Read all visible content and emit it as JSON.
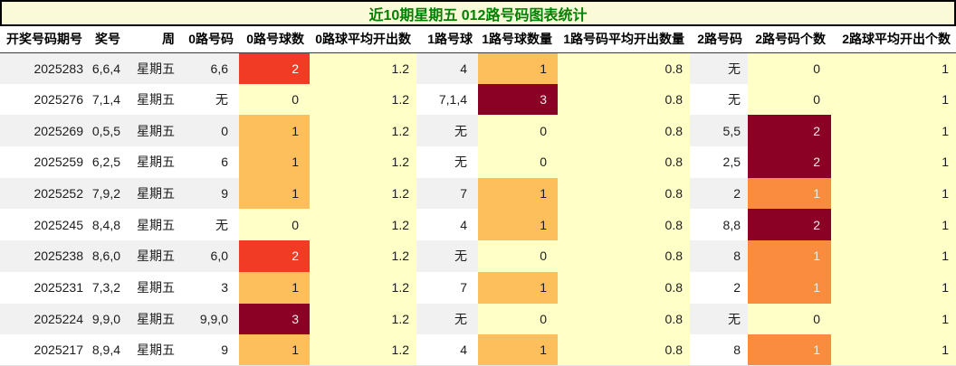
{
  "title_bar": {
    "title": "近10期星期五 012路号码图表统计"
  },
  "chart_data": {
    "type": "table",
    "title": "近10期星期五 012路号码图表统计",
    "headers": [
      "开奖号码期号",
      "奖号",
      "周",
      "0路号码",
      "0路号球数",
      "0路球平均开出数",
      "1路号球",
      "1路号球数量",
      "1路号码平均开出数量",
      "2路号码",
      "2路号码个数",
      "2路球平均开出个数"
    ],
    "rows": [
      {
        "period": "2025283",
        "prize": "6,6,4",
        "week": "星期五",
        "r0_nums": "6,6",
        "r0_count": "2",
        "r0_color": "red",
        "r0_avg": "1.2",
        "r1_nums": "4",
        "r1_count": "1",
        "r1_color": "light_orange",
        "r1_avg": "0.8",
        "r2_nums": "无",
        "r2_count": "0",
        "r2_color": "yellow",
        "r2_avg": "1"
      },
      {
        "period": "2025276",
        "prize": "7,1,4",
        "week": "星期五",
        "r0_nums": "无",
        "r0_count": "0",
        "r0_color": "yellow",
        "r0_avg": "1.2",
        "r1_nums": "7,1,4",
        "r1_count": "3",
        "r1_color": "maroon",
        "r1_avg": "0.8",
        "r2_nums": "无",
        "r2_count": "0",
        "r2_color": "yellow",
        "r2_avg": "1"
      },
      {
        "period": "2025269",
        "prize": "0,5,5",
        "week": "星期五",
        "r0_nums": "0",
        "r0_count": "1",
        "r0_color": "light_orange",
        "r0_avg": "1.2",
        "r1_nums": "无",
        "r1_count": "0",
        "r1_color": "yellow",
        "r1_avg": "0.8",
        "r2_nums": "5,5",
        "r2_count": "2",
        "r2_color": "maroon",
        "r2_avg": "1"
      },
      {
        "period": "2025259",
        "prize": "6,2,5",
        "week": "星期五",
        "r0_nums": "6",
        "r0_count": "1",
        "r0_color": "light_orange",
        "r0_avg": "1.2",
        "r1_nums": "无",
        "r1_count": "0",
        "r1_color": "yellow",
        "r1_avg": "0.8",
        "r2_nums": "2,5",
        "r2_count": "2",
        "r2_color": "maroon",
        "r2_avg": "1"
      },
      {
        "period": "2025252",
        "prize": "7,9,2",
        "week": "星期五",
        "r0_nums": "9",
        "r0_count": "1",
        "r0_color": "light_orange",
        "r0_avg": "1.2",
        "r1_nums": "7",
        "r1_count": "1",
        "r1_color": "light_orange",
        "r1_avg": "0.8",
        "r2_nums": "2",
        "r2_count": "1",
        "r2_color": "bright_orange",
        "r2_avg": "1"
      },
      {
        "period": "2025245",
        "prize": "8,4,8",
        "week": "星期五",
        "r0_nums": "无",
        "r0_count": "0",
        "r0_color": "yellow",
        "r0_avg": "1.2",
        "r1_nums": "4",
        "r1_count": "1",
        "r1_color": "light_orange",
        "r1_avg": "0.8",
        "r2_nums": "8,8",
        "r2_count": "2",
        "r2_color": "maroon",
        "r2_avg": "1"
      },
      {
        "period": "2025238",
        "prize": "8,6,0",
        "week": "星期五",
        "r0_nums": "6,0",
        "r0_count": "2",
        "r0_color": "red",
        "r0_avg": "1.2",
        "r1_nums": "无",
        "r1_count": "0",
        "r1_color": "yellow",
        "r1_avg": "0.8",
        "r2_nums": "8",
        "r2_count": "1",
        "r2_color": "bright_orange",
        "r2_avg": "1"
      },
      {
        "period": "2025231",
        "prize": "7,3,2",
        "week": "星期五",
        "r0_nums": "3",
        "r0_count": "1",
        "r0_color": "light_orange",
        "r0_avg": "1.2",
        "r1_nums": "7",
        "r1_count": "1",
        "r1_color": "light_orange",
        "r1_avg": "0.8",
        "r2_nums": "2",
        "r2_count": "1",
        "r2_color": "bright_orange",
        "r2_avg": "1"
      },
      {
        "period": "2025224",
        "prize": "9,9,0",
        "week": "星期五",
        "r0_nums": "9,9,0",
        "r0_count": "3",
        "r0_color": "maroon",
        "r0_avg": "1.2",
        "r1_nums": "无",
        "r1_count": "0",
        "r1_color": "yellow",
        "r1_avg": "0.8",
        "r2_nums": "无",
        "r2_count": "0",
        "r2_color": "yellow",
        "r2_avg": "1"
      },
      {
        "period": "2025217",
        "prize": "8,9,4",
        "week": "星期五",
        "r0_nums": "9",
        "r0_count": "1",
        "r0_color": "light_orange",
        "r0_avg": "1.2",
        "r1_nums": "4",
        "r1_count": "1",
        "r1_color": "light_orange",
        "r1_avg": "0.8",
        "r2_nums": "8",
        "r2_count": "1",
        "r2_color": "bright_orange",
        "r2_avg": "1"
      }
    ],
    "column_averages": {
      "road0_avg": "1.2",
      "road1_avg": "0.8",
      "road2_avg": "1"
    }
  },
  "colors": {
    "title_bar_bg": "#fafad8",
    "title_text": "#008000",
    "row_stripe": "#f1f1f1",
    "avg_bg": "#ffffc8",
    "heat": {
      "yellow": {
        "bg": "#ffffc8",
        "fg": "#1c1c1c"
      },
      "light_orange": {
        "bg": "#fdbe5c",
        "fg": "#1c1c1c"
      },
      "bright_orange": {
        "bg": "#fa8c40",
        "fg": "#ededed"
      },
      "red": {
        "bg": "#f23b24",
        "fg": "#ffffff"
      },
      "maroon": {
        "bg": "#8b0126",
        "fg": "#ebebeb"
      }
    }
  }
}
